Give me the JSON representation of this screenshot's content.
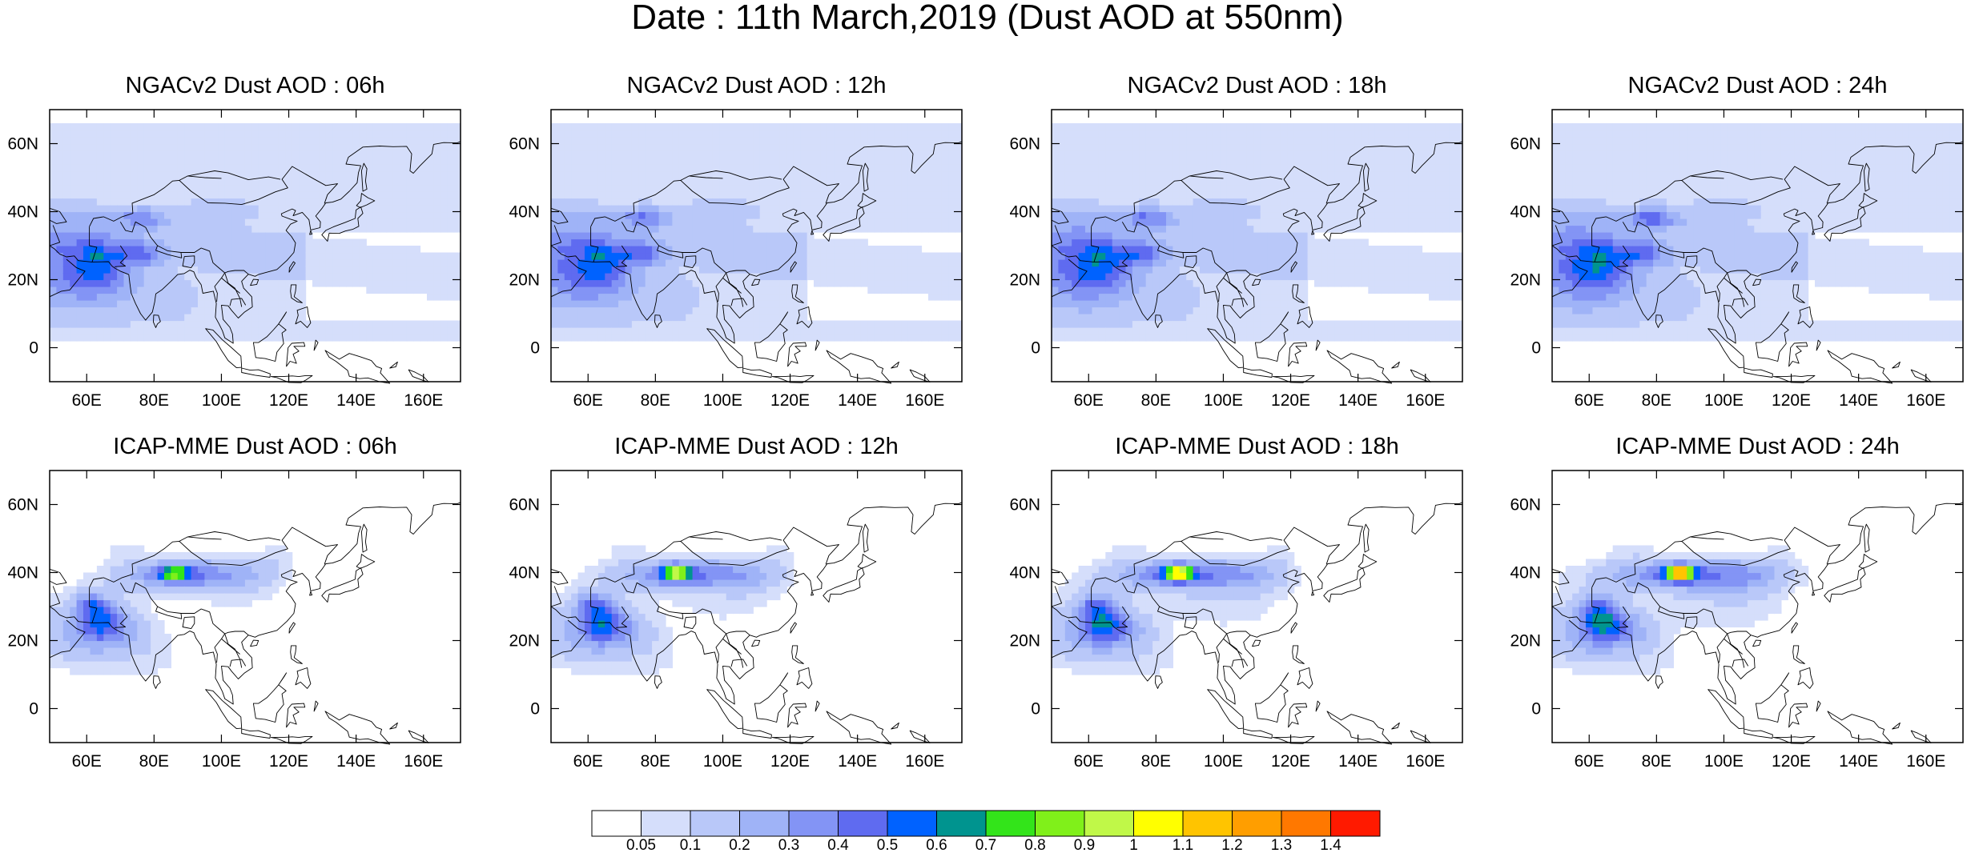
{
  "title": "Date : 11th March,2019 (Dust AOD at 550nm)",
  "x_ticks": [
    60,
    80,
    100,
    120,
    140,
    160
  ],
  "x_tick_labels": [
    "60E",
    "80E",
    "100E",
    "120E",
    "140E",
    "160E"
  ],
  "y_ticks": [
    0,
    20,
    40,
    60
  ],
  "y_tick_labels": [
    "0",
    "20N",
    "40N",
    "60N"
  ],
  "lon_range": [
    49,
    171
  ],
  "lat_range": [
    -10,
    70
  ],
  "panels": [
    {
      "title": "NGACv2 Dust AOD : 06h",
      "model": "NGACv2",
      "hour": 6
    },
    {
      "title": "NGACv2 Dust AOD : 12h",
      "model": "NGACv2",
      "hour": 12
    },
    {
      "title": "NGACv2 Dust AOD : 18h",
      "model": "NGACv2",
      "hour": 18
    },
    {
      "title": "NGACv2 Dust AOD : 24h",
      "model": "NGACv2",
      "hour": 24
    },
    {
      "title": "ICAP-MME Dust AOD : 06h",
      "model": "ICAP-MME",
      "hour": 6
    },
    {
      "title": "ICAP-MME Dust AOD : 12h",
      "model": "ICAP-MME",
      "hour": 12
    },
    {
      "title": "ICAP-MME Dust AOD : 18h",
      "model": "ICAP-MME",
      "hour": 18
    },
    {
      "title": "ICAP-MME Dust AOD : 24h",
      "model": "ICAP-MME",
      "hour": 24
    }
  ],
  "colorbar": {
    "labels": [
      "0.05",
      "0.1",
      "0.2",
      "0.3",
      "0.4",
      "0.5",
      "0.6",
      "0.7",
      "0.8",
      "0.9",
      "1",
      "1.1",
      "1.2",
      "1.3",
      "1.4"
    ],
    "colors": [
      "#ffffff",
      "#d5defb",
      "#b9c8f9",
      "#9fb3f7",
      "#8394f5",
      "#5f6bf0",
      "#0062ff",
      "#00948f",
      "#33e41a",
      "#80f01a",
      "#c0f848",
      "#ffff00",
      "#ffc400",
      "#ff9e00",
      "#ff7800",
      "#ff1a00"
    ]
  }
}
